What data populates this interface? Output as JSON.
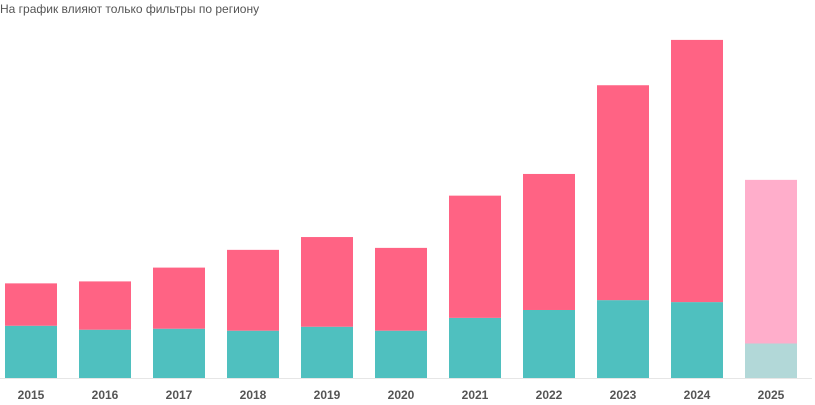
{
  "note": "На график влияют только фильтры по региону",
  "chart_data": {
    "type": "bar",
    "stacked": true,
    "categories": [
      "2015",
      "2016",
      "2017",
      "2018",
      "2019",
      "2020",
      "2021",
      "2022",
      "2023",
      "2024",
      "2025"
    ],
    "series": [
      {
        "values": [
          53,
          49,
          50,
          48,
          52,
          48,
          61,
          69,
          79,
          77,
          35
        ],
        "color": "#4fc0bf",
        "last_color": "#b2d8d8"
      },
      {
        "values": [
          43,
          49,
          62,
          82,
          91,
          84,
          124,
          138,
          218,
          266,
          166
        ],
        "color": "#ff6384",
        "last_color": "#ffaecb"
      }
    ],
    "ylim": [
      0,
      350
    ],
    "grid": false,
    "legend": "none"
  }
}
